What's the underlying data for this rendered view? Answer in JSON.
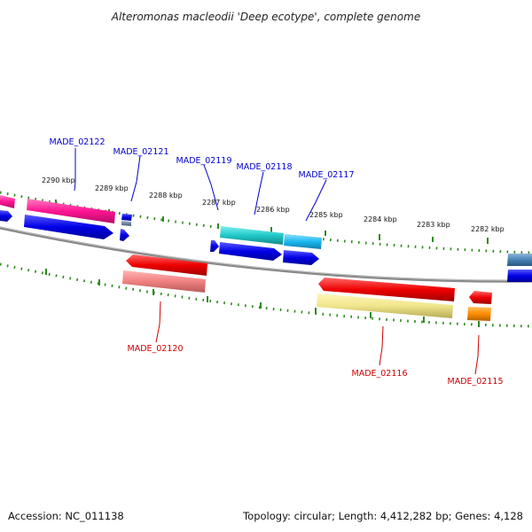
{
  "title": "Alteromonas macleodii 'Deep ecotype', complete genome",
  "footer": {
    "accession": "Accession: NC_011138",
    "summary": "Topology: circular; Length: 4,412,282 bp; Genes: 4,128"
  },
  "colors": {
    "backbone": "#8a8a8a",
    "tick": "#2e8b1e",
    "forward_label": "#0000cc",
    "reverse_label": "#cc0000",
    "cds_forward": "#0000e8",
    "cds_reverse": "#e80000"
  },
  "scale": {
    "ticks_kbp": [
      "2290 kbp",
      "2289 kbp",
      "2288 kbp",
      "2287 kbp",
      "2286 kbp",
      "2285 kbp",
      "2284 kbp",
      "2283 kbp",
      "2282 kbp"
    ]
  },
  "genes": {
    "forward": [
      "MADE_02122",
      "MADE_02121",
      "MADE_02119",
      "MADE_02118",
      "MADE_02117"
    ],
    "reverse": [
      "MADE_02120",
      "MADE_02116",
      "MADE_02115"
    ]
  }
}
